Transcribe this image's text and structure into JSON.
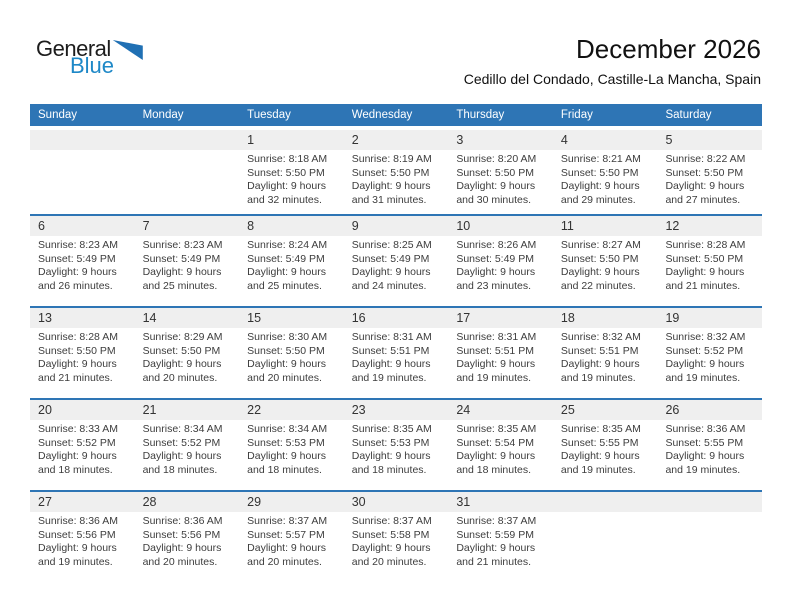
{
  "logo": {
    "part1": "General",
    "part2": "Blue",
    "triangle_icon": "flag-triangle"
  },
  "header": {
    "title": "December 2026",
    "subtitle": "Cedillo del Condado, Castille-La Mancha, Spain"
  },
  "colors": {
    "header_bar_blue": "#2E75B5",
    "week_divider_blue": "#2E75B5",
    "day_number_band_gray": "#EFEFEF",
    "logo_blue_text": "#1E88C7",
    "logo_triangle_blue": "#2070B4"
  },
  "calendar": {
    "day_headers": [
      "Sunday",
      "Monday",
      "Tuesday",
      "Wednesday",
      "Thursday",
      "Friday",
      "Saturday"
    ],
    "weeks": [
      [
        null,
        null,
        {
          "date": "1",
          "sunrise": "Sunrise: 8:18 AM",
          "sunset": "Sunset: 5:50 PM",
          "daylight": "Daylight: 9 hours and 32 minutes."
        },
        {
          "date": "2",
          "sunrise": "Sunrise: 8:19 AM",
          "sunset": "Sunset: 5:50 PM",
          "daylight": "Daylight: 9 hours and 31 minutes."
        },
        {
          "date": "3",
          "sunrise": "Sunrise: 8:20 AM",
          "sunset": "Sunset: 5:50 PM",
          "daylight": "Daylight: 9 hours and 30 minutes."
        },
        {
          "date": "4",
          "sunrise": "Sunrise: 8:21 AM",
          "sunset": "Sunset: 5:50 PM",
          "daylight": "Daylight: 9 hours and 29 minutes."
        },
        {
          "date": "5",
          "sunrise": "Sunrise: 8:22 AM",
          "sunset": "Sunset: 5:50 PM",
          "daylight": "Daylight: 9 hours and 27 minutes."
        }
      ],
      [
        {
          "date": "6",
          "sunrise": "Sunrise: 8:23 AM",
          "sunset": "Sunset: 5:49 PM",
          "daylight": "Daylight: 9 hours and 26 minutes."
        },
        {
          "date": "7",
          "sunrise": "Sunrise: 8:23 AM",
          "sunset": "Sunset: 5:49 PM",
          "daylight": "Daylight: 9 hours and 25 minutes."
        },
        {
          "date": "8",
          "sunrise": "Sunrise: 8:24 AM",
          "sunset": "Sunset: 5:49 PM",
          "daylight": "Daylight: 9 hours and 25 minutes."
        },
        {
          "date": "9",
          "sunrise": "Sunrise: 8:25 AM",
          "sunset": "Sunset: 5:49 PM",
          "daylight": "Daylight: 9 hours and 24 minutes."
        },
        {
          "date": "10",
          "sunrise": "Sunrise: 8:26 AM",
          "sunset": "Sunset: 5:49 PM",
          "daylight": "Daylight: 9 hours and 23 minutes."
        },
        {
          "date": "11",
          "sunrise": "Sunrise: 8:27 AM",
          "sunset": "Sunset: 5:50 PM",
          "daylight": "Daylight: 9 hours and 22 minutes."
        },
        {
          "date": "12",
          "sunrise": "Sunrise: 8:28 AM",
          "sunset": "Sunset: 5:50 PM",
          "daylight": "Daylight: 9 hours and 21 minutes."
        }
      ],
      [
        {
          "date": "13",
          "sunrise": "Sunrise: 8:28 AM",
          "sunset": "Sunset: 5:50 PM",
          "daylight": "Daylight: 9 hours and 21 minutes."
        },
        {
          "date": "14",
          "sunrise": "Sunrise: 8:29 AM",
          "sunset": "Sunset: 5:50 PM",
          "daylight": "Daylight: 9 hours and 20 minutes."
        },
        {
          "date": "15",
          "sunrise": "Sunrise: 8:30 AM",
          "sunset": "Sunset: 5:50 PM",
          "daylight": "Daylight: 9 hours and 20 minutes."
        },
        {
          "date": "16",
          "sunrise": "Sunrise: 8:31 AM",
          "sunset": "Sunset: 5:51 PM",
          "daylight": "Daylight: 9 hours and 19 minutes."
        },
        {
          "date": "17",
          "sunrise": "Sunrise: 8:31 AM",
          "sunset": "Sunset: 5:51 PM",
          "daylight": "Daylight: 9 hours and 19 minutes."
        },
        {
          "date": "18",
          "sunrise": "Sunrise: 8:32 AM",
          "sunset": "Sunset: 5:51 PM",
          "daylight": "Daylight: 9 hours and 19 minutes."
        },
        {
          "date": "19",
          "sunrise": "Sunrise: 8:32 AM",
          "sunset": "Sunset: 5:52 PM",
          "daylight": "Daylight: 9 hours and 19 minutes."
        }
      ],
      [
        {
          "date": "20",
          "sunrise": "Sunrise: 8:33 AM",
          "sunset": "Sunset: 5:52 PM",
          "daylight": "Daylight: 9 hours and 18 minutes."
        },
        {
          "date": "21",
          "sunrise": "Sunrise: 8:34 AM",
          "sunset": "Sunset: 5:52 PM",
          "daylight": "Daylight: 9 hours and 18 minutes."
        },
        {
          "date": "22",
          "sunrise": "Sunrise: 8:34 AM",
          "sunset": "Sunset: 5:53 PM",
          "daylight": "Daylight: 9 hours and 18 minutes."
        },
        {
          "date": "23",
          "sunrise": "Sunrise: 8:35 AM",
          "sunset": "Sunset: 5:53 PM",
          "daylight": "Daylight: 9 hours and 18 minutes."
        },
        {
          "date": "24",
          "sunrise": "Sunrise: 8:35 AM",
          "sunset": "Sunset: 5:54 PM",
          "daylight": "Daylight: 9 hours and 18 minutes."
        },
        {
          "date": "25",
          "sunrise": "Sunrise: 8:35 AM",
          "sunset": "Sunset: 5:55 PM",
          "daylight": "Daylight: 9 hours and 19 minutes."
        },
        {
          "date": "26",
          "sunrise": "Sunrise: 8:36 AM",
          "sunset": "Sunset: 5:55 PM",
          "daylight": "Daylight: 9 hours and 19 minutes."
        }
      ],
      [
        {
          "date": "27",
          "sunrise": "Sunrise: 8:36 AM",
          "sunset": "Sunset: 5:56 PM",
          "daylight": "Daylight: 9 hours and 19 minutes."
        },
        {
          "date": "28",
          "sunrise": "Sunrise: 8:36 AM",
          "sunset": "Sunset: 5:56 PM",
          "daylight": "Daylight: 9 hours and 20 minutes."
        },
        {
          "date": "29",
          "sunrise": "Sunrise: 8:37 AM",
          "sunset": "Sunset: 5:57 PM",
          "daylight": "Daylight: 9 hours and 20 minutes."
        },
        {
          "date": "30",
          "sunrise": "Sunrise: 8:37 AM",
          "sunset": "Sunset: 5:58 PM",
          "daylight": "Daylight: 9 hours and 20 minutes."
        },
        {
          "date": "31",
          "sunrise": "Sunrise: 8:37 AM",
          "sunset": "Sunset: 5:59 PM",
          "daylight": "Daylight: 9 hours and 21 minutes."
        },
        null,
        null
      ]
    ]
  }
}
